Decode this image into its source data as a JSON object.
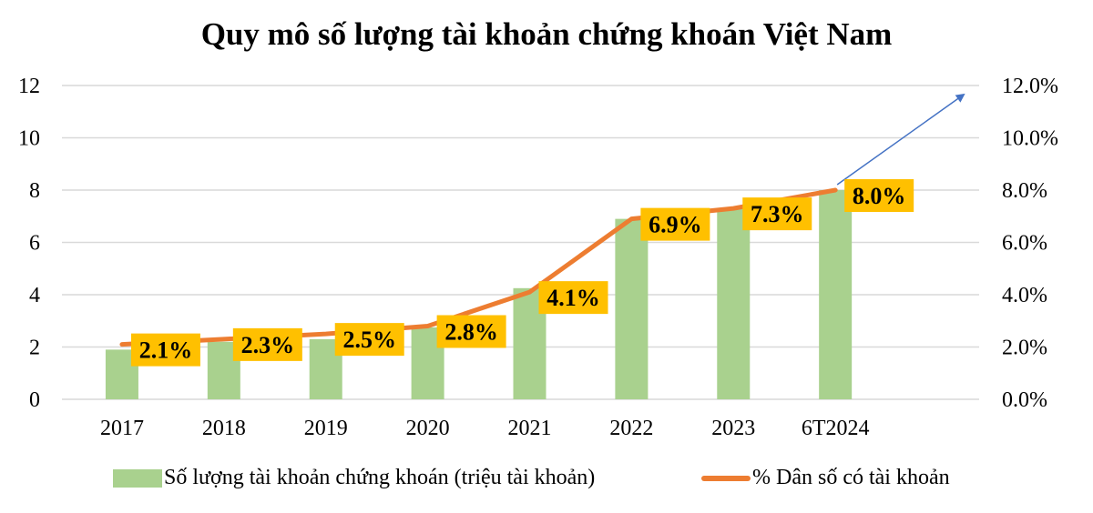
{
  "chart_data": {
    "type": "bar",
    "title": "Quy mô số lượng tài khoản chứng khoán Việt Nam",
    "categories": [
      "2017",
      "2018",
      "2019",
      "2020",
      "2021",
      "2022",
      "2023",
      "6T2024"
    ],
    "series": [
      {
        "name": "Số lượng tài khoản chứng khoán (triệu tài khoản)",
        "type": "bar",
        "axis": "left",
        "color": "#a9d18e",
        "values": [
          1.9,
          2.2,
          2.3,
          2.75,
          4.25,
          6.9,
          7.3,
          8.0
        ]
      },
      {
        "name": "% Dân số có tài khoản",
        "type": "line",
        "axis": "right",
        "color": "#ed7d31",
        "values": [
          2.1,
          2.3,
          2.5,
          2.8,
          4.1,
          6.9,
          7.3,
          8.0
        ],
        "data_labels": [
          "2.1%",
          "2.3%",
          "2.5%",
          "2.8%",
          "4.1%",
          "6.9%",
          "7.3%",
          "8.0%"
        ],
        "label_bg": "#ffc000"
      }
    ],
    "y_left": {
      "ylim": [
        0,
        12
      ],
      "ticks": [
        "0",
        "2",
        "4",
        "6",
        "8",
        "10",
        "12"
      ]
    },
    "y_right": {
      "ylim": [
        0,
        12
      ],
      "ticks": [
        "0.0%",
        "2.0%",
        "4.0%",
        "6.0%",
        "8.0%",
        "10.0%",
        "12.0%"
      ]
    },
    "xlabel": "",
    "ylabel": "",
    "grid": true,
    "legend": "bottom",
    "annotation": {
      "type": "trend-arrow",
      "color": "#4472c4",
      "description": "upward arrow extending from last data point"
    }
  }
}
